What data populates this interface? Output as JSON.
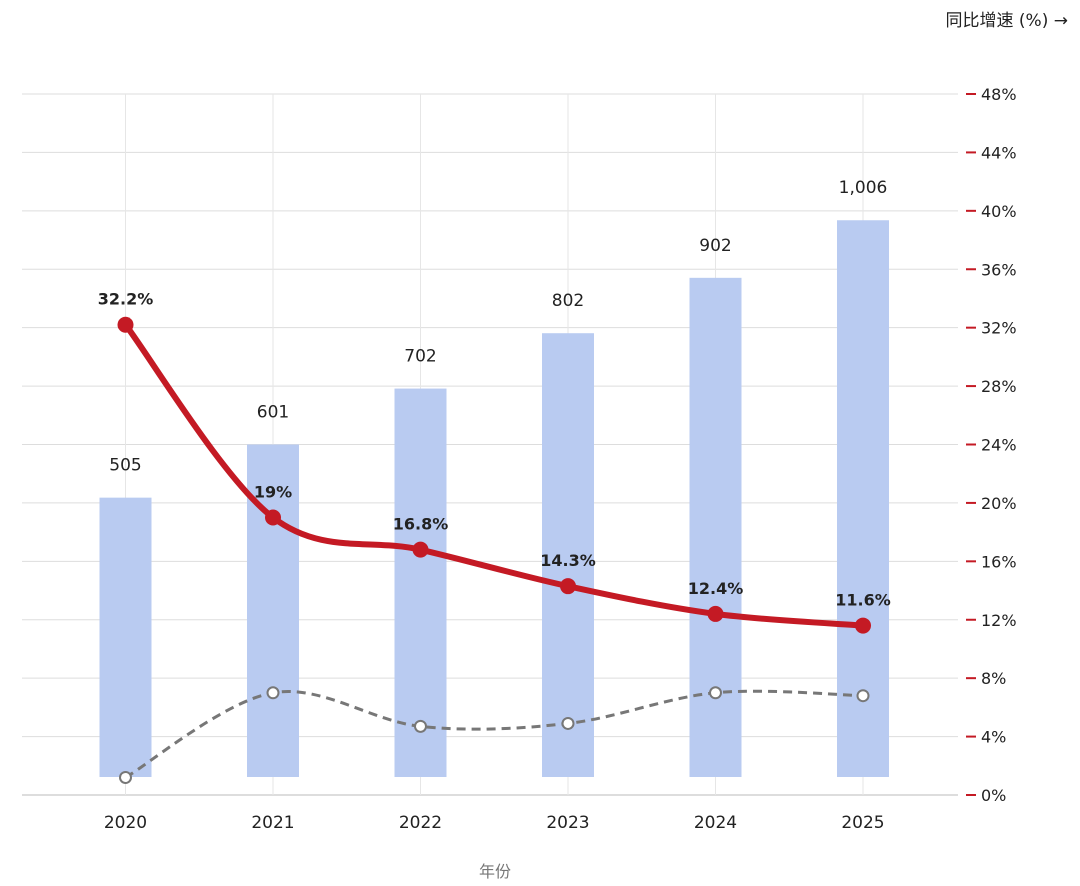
{
  "chart_data": {
    "type": "bar",
    "title": "",
    "xlabel": "年份",
    "y2label": "同比增速 (%) →",
    "categories": [
      "2020",
      "2021",
      "2022",
      "2023",
      "2024",
      "2025"
    ],
    "series": [
      {
        "type": "bar",
        "axis": "left",
        "values": [
          505,
          601,
          702,
          802,
          902,
          1006
        ],
        "labels": [
          "505",
          "601",
          "702",
          "802",
          "902",
          "1,006"
        ]
      },
      {
        "type": "line",
        "axis": "right",
        "values": [
          32.2,
          19,
          16.8,
          14.3,
          12.4,
          11.6
        ],
        "labels": [
          "32.2%",
          "19%",
          "16.8%",
          "14.3%",
          "12.4%",
          "11.6%"
        ]
      },
      {
        "type": "line",
        "axis": "right",
        "style": "dashed",
        "values": [
          1.2,
          7.0,
          4.7,
          4.9,
          7.0,
          6.8
        ]
      }
    ],
    "y_left_range": [
      -32,
      1234
    ],
    "y_right_range": [
      0,
      48
    ],
    "y_right_ticks": [
      "0%",
      "4%",
      "8%",
      "12%",
      "16%",
      "20%",
      "24%",
      "28%",
      "32%",
      "36%",
      "40%",
      "44%",
      "48%"
    ],
    "grid": true,
    "colors": {
      "bar": "#b9cbf1",
      "line": "#c41a24",
      "dashed": "#777777",
      "axis_tick": "#c41a24"
    }
  }
}
